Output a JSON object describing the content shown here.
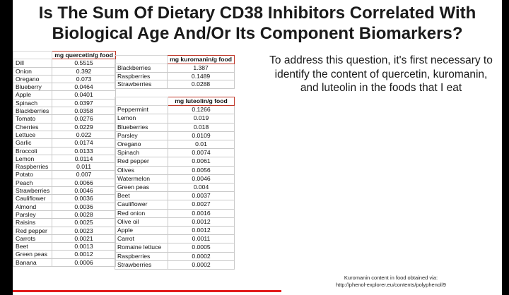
{
  "title": {
    "line1": "Is The Sum Of Dietary CD38 Inhibitors Correlated With",
    "line2": "Biological Age And/Or Its Component Biomarkers?"
  },
  "explanation": "To address this question, it's first necessary to identify the content of quercetin, kuromanin, and luteolin in the foods that I eat",
  "source": {
    "line1": "Kuromanin content in food obtained via:",
    "line2": "http://phenol-explorer.eu/contents/polyphenol/9"
  },
  "quercetin_table": {
    "header": "mg quercetin/g food",
    "rows": [
      {
        "food": "Dill",
        "value": "0.5515"
      },
      {
        "food": "Onion",
        "value": "0.392"
      },
      {
        "food": "Oregano",
        "value": "0.073"
      },
      {
        "food": "Blueberry",
        "value": "0.0464"
      },
      {
        "food": "Apple",
        "value": "0.0401"
      },
      {
        "food": "Spinach",
        "value": "0.0397"
      },
      {
        "food": "Blackberries",
        "value": "0.0358"
      },
      {
        "food": "Tomato",
        "value": "0.0276"
      },
      {
        "food": "Cherries",
        "value": "0.0229"
      },
      {
        "food": "Lettuce",
        "value": "0.022"
      },
      {
        "food": "Garlic",
        "value": "0.0174"
      },
      {
        "food": "Broccoli",
        "value": "0.0133"
      },
      {
        "food": "Lemon",
        "value": "0.0114"
      },
      {
        "food": "Raspberries",
        "value": "0.011"
      },
      {
        "food": "Potato",
        "value": "0.007"
      },
      {
        "food": "Peach",
        "value": "0.0066"
      },
      {
        "food": "Strawberries",
        "value": "0.0046"
      },
      {
        "food": "Cauliflower",
        "value": "0.0036"
      },
      {
        "food": "Almond",
        "value": "0.0036"
      },
      {
        "food": "Parsley",
        "value": "0.0028"
      },
      {
        "food": "Raisins",
        "value": "0.0025"
      },
      {
        "food": "Red pepper",
        "value": "0.0023"
      },
      {
        "food": "Carrots",
        "value": "0.0021"
      },
      {
        "food": "Beet",
        "value": "0.0013"
      },
      {
        "food": "Green peas",
        "value": "0.0012"
      },
      {
        "food": "Banana",
        "value": "0.0006"
      }
    ]
  },
  "kuromanin_table": {
    "header": "mg kuromanin/g food",
    "rows": [
      {
        "food": "Blackberries",
        "value": "1.387"
      },
      {
        "food": "Raspberries",
        "value": "0.1489"
      },
      {
        "food": "Strawberries",
        "value": "0.0288"
      }
    ]
  },
  "luteolin_table": {
    "header": "mg luteolin/g food",
    "rows": [
      {
        "food": "Peppermint",
        "value": "0.1266"
      },
      {
        "food": "Lemon",
        "value": "0.019"
      },
      {
        "food": "Blueberries",
        "value": "0.018"
      },
      {
        "food": "Parsley",
        "value": "0.0109"
      },
      {
        "food": "Oregano",
        "value": "0.01"
      },
      {
        "food": "Spinach",
        "value": "0.0074"
      },
      {
        "food": "Red pepper",
        "value": "0.0061"
      },
      {
        "food": "Olives",
        "value": "0.0056"
      },
      {
        "food": "Watermelon",
        "value": "0.0046"
      },
      {
        "food": "Green peas",
        "value": "0.004"
      },
      {
        "food": "Beet",
        "value": "0.0037"
      },
      {
        "food": "Cauliflower",
        "value": "0.0027"
      },
      {
        "food": "Red onion",
        "value": "0.0016"
      },
      {
        "food": "Olive oil",
        "value": "0.0012"
      },
      {
        "food": "Apple",
        "value": "0.0012"
      },
      {
        "food": "Carrot",
        "value": "0.0011"
      },
      {
        "food": "Romaine lettuce",
        "value": "0.0005"
      },
      {
        "food": "Raspberries",
        "value": "0.0002"
      },
      {
        "food": "Strawberries",
        "value": "0.0002"
      }
    ]
  },
  "colors": {
    "header_border": "#c0392b",
    "accent_bar": "#e21b1b",
    "background": "#ffffff",
    "frame": "#000000"
  }
}
